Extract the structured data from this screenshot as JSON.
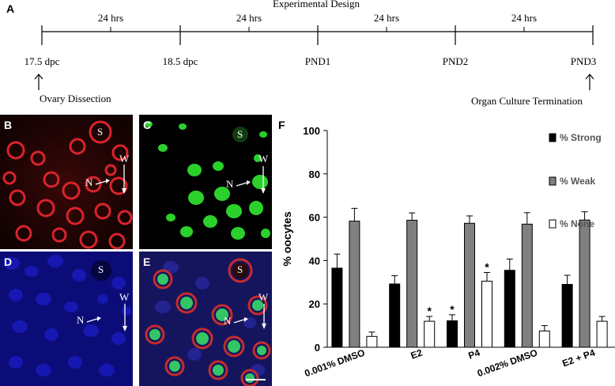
{
  "panel_a": {
    "label": "A",
    "title": "Experimental Design",
    "intervals": [
      "24 hrs",
      "24 hrs",
      "24 hrs",
      "24 hrs"
    ],
    "timepoints": [
      "17.5 dpc",
      "18.5 dpc",
      "PND1",
      "PND2",
      "PND3"
    ],
    "start_event": "Ovary Dissection",
    "end_event": "Organ Culture Termination"
  },
  "micrographs": {
    "b": {
      "label": "B",
      "s": "S",
      "n": "N",
      "w": "W"
    },
    "c": {
      "label": "C",
      "s": "S",
      "n": "N",
      "w": "W"
    },
    "d": {
      "label": "D",
      "s": "S",
      "n": "N",
      "w": "W"
    },
    "e": {
      "label": "E",
      "s": "S",
      "n": "N",
      "w": "W"
    }
  },
  "chart_data": {
    "label": "F",
    "type": "bar",
    "ylabel": "% oocytes",
    "ylim": [
      0,
      100
    ],
    "yticks": [
      0,
      20,
      40,
      60,
      80,
      100
    ],
    "categories": [
      "0.001% DMSO",
      "E2",
      "P4",
      "0.002% DMSO",
      "E2 + P4"
    ],
    "series": [
      {
        "name": "% Strong",
        "color": "#000000",
        "values": [
          36.5,
          29.2,
          12.2,
          35.5,
          29.0
        ],
        "errors": [
          6.5,
          3.8,
          2.8,
          5.2,
          4.2
        ],
        "significant": [
          false,
          false,
          true,
          false,
          false
        ]
      },
      {
        "name": "% Weak",
        "color": "#808080",
        "values": [
          58.2,
          58.6,
          57.2,
          56.8,
          58.7
        ],
        "errors": [
          5.9,
          3.4,
          3.4,
          5.3,
          3.8
        ],
        "significant": [
          false,
          false,
          false,
          false,
          false
        ]
      },
      {
        "name": "% None",
        "color": "#ffffff",
        "values": [
          5.0,
          12.0,
          30.5,
          7.5,
          12.0
        ],
        "errors": [
          2.0,
          2.2,
          4.0,
          2.5,
          2.2
        ],
        "significant": [
          false,
          true,
          true,
          false,
          false
        ]
      }
    ],
    "significance_mark": "*"
  }
}
